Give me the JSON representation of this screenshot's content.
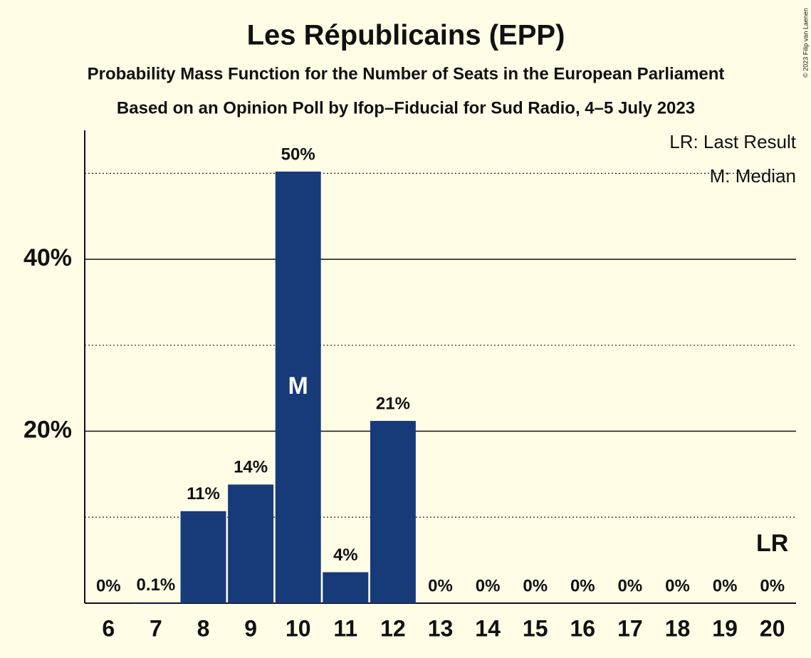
{
  "chart_data": {
    "type": "bar",
    "title": "Les Républicains (EPP)",
    "subtitle": "Probability Mass Function for the Number of Seats in the European Parliament",
    "subtitle2": "Based on an Opinion Poll by Ifop–Fiducial for Sud Radio, 4–5 July 2023",
    "copyright": "© 2023 Filip van Laenen",
    "categories": [
      "6",
      "7",
      "8",
      "9",
      "10",
      "11",
      "12",
      "13",
      "14",
      "15",
      "16",
      "17",
      "18",
      "19",
      "20"
    ],
    "values": [
      0,
      0.1,
      10.7,
      13.8,
      50.2,
      3.6,
      21.2,
      0,
      0,
      0,
      0,
      0,
      0,
      0,
      0
    ],
    "value_labels": [
      "0%",
      "0.1%",
      "11%",
      "14%",
      "50%",
      "4%",
      "21%",
      "0%",
      "0%",
      "0%",
      "0%",
      "0%",
      "0%",
      "0%",
      "0%"
    ],
    "color": "#173a79",
    "ylim": [
      0,
      55
    ],
    "yticks": [
      {
        "value": 20,
        "label": "20%"
      },
      {
        "value": 40,
        "label": "40%"
      }
    ],
    "minor_grid": [
      10,
      30,
      50
    ],
    "grid": true,
    "annotations": [
      {
        "text": "M",
        "at": "10"
      },
      {
        "text": "LR",
        "at": "20"
      }
    ],
    "legend": [
      "LR: Last Result",
      "M: Median"
    ]
  }
}
